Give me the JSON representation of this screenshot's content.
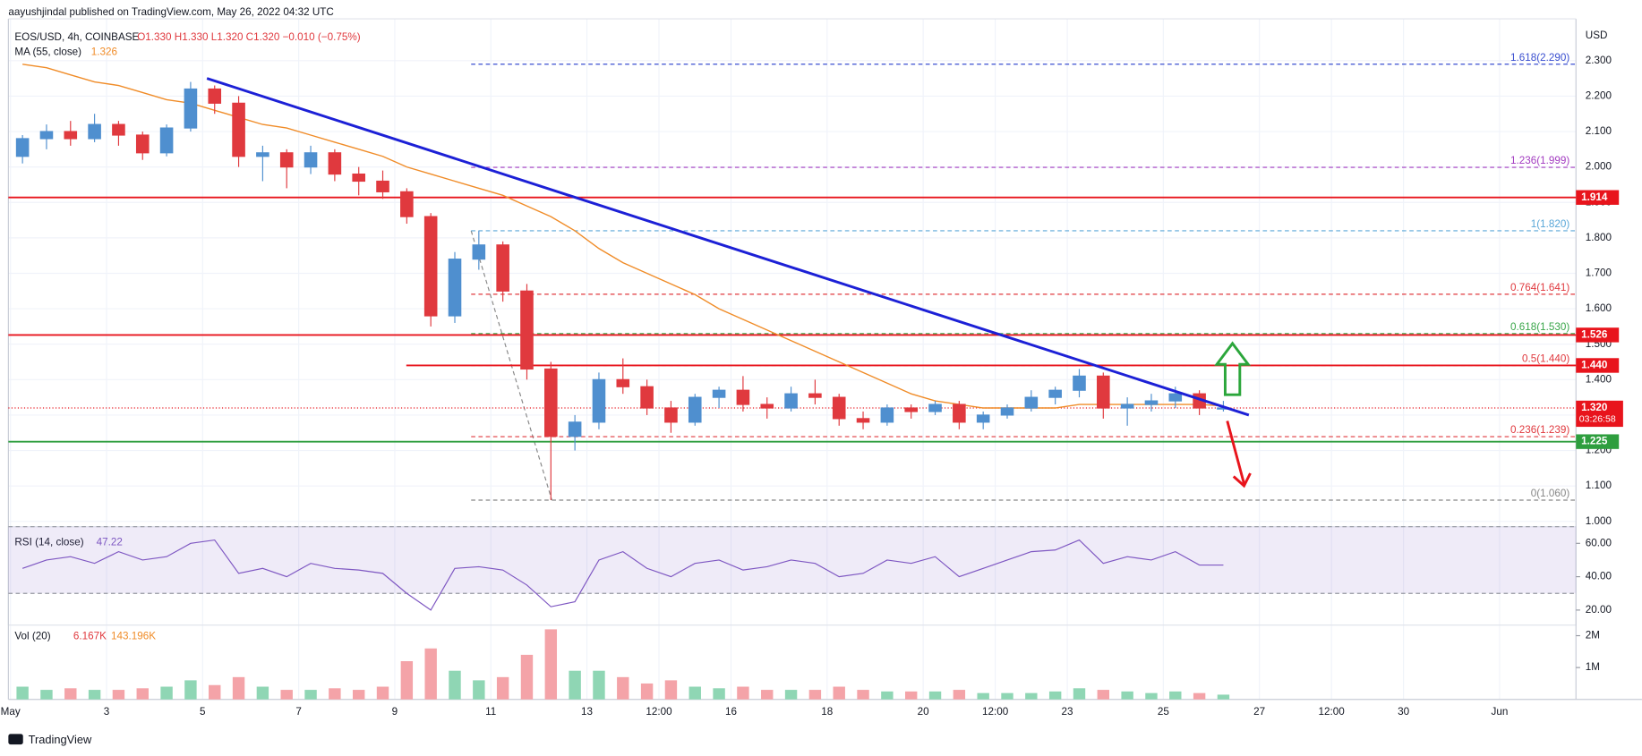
{
  "chart_data": {
    "type": "candlestick",
    "header": "aayushjindal published on TradingView.com, May 26, 2022 04:32 UTC",
    "symbol": "EOS/USD, 4h, COINBASE",
    "ohlc_text": "O1.330 H1.330 L1.320 C1.320 −0.010 (−0.75%)",
    "axis_unit": "USD",
    "footer": "TradingView",
    "up_color": "#4f8fcf",
    "down_color": "#e0393e",
    "x": [
      1.25,
      1.75,
      2.25,
      2.75,
      3.25,
      3.75,
      4.25,
      4.75,
      5.25,
      5.75,
      6.25,
      6.75,
      7.25,
      7.75,
      8.25,
      8.75,
      9.25,
      9.75,
      10.25,
      10.75,
      11.25,
      11.75,
      12.25,
      12.75,
      13.25,
      13.75,
      14.25,
      14.75,
      15.25,
      15.75,
      16.25,
      16.75,
      17.25,
      17.75,
      18.25,
      18.75,
      19.25,
      19.75,
      20.25,
      20.75,
      21.25,
      21.75,
      22.25,
      22.75,
      23.25,
      23.75,
      24.25,
      24.75,
      25.25,
      25.75,
      26.25
    ],
    "open": [
      2.03,
      2.08,
      2.1,
      2.08,
      2.12,
      2.09,
      2.04,
      2.11,
      2.22,
      2.18,
      2.03,
      2.04,
      2.0,
      2.04,
      1.98,
      1.96,
      1.93,
      1.86,
      1.58,
      1.74,
      1.78,
      1.65,
      1.43,
      1.24,
      1.28,
      1.4,
      1.38,
      1.32,
      1.28,
      1.35,
      1.37,
      1.33,
      1.32,
      1.36,
      1.35,
      1.29,
      1.28,
      1.32,
      1.31,
      1.33,
      1.28,
      1.3,
      1.32,
      1.35,
      1.37,
      1.41,
      1.32,
      1.33,
      1.34,
      1.36,
      1.32
    ],
    "high": [
      2.09,
      2.12,
      2.13,
      2.15,
      2.13,
      2.1,
      2.12,
      2.24,
      2.23,
      2.2,
      2.06,
      2.05,
      2.06,
      2.05,
      2.0,
      1.99,
      1.94,
      1.87,
      1.76,
      1.82,
      1.79,
      1.67,
      1.45,
      1.3,
      1.42,
      1.46,
      1.4,
      1.34,
      1.36,
      1.38,
      1.41,
      1.35,
      1.38,
      1.4,
      1.36,
      1.31,
      1.33,
      1.33,
      1.34,
      1.34,
      1.31,
      1.33,
      1.37,
      1.38,
      1.43,
      1.42,
      1.35,
      1.36,
      1.38,
      1.37,
      1.34
    ],
    "low": [
      2.01,
      2.05,
      2.06,
      2.07,
      2.06,
      2.02,
      2.03,
      2.1,
      2.15,
      2.0,
      1.96,
      1.94,
      1.98,
      1.96,
      1.92,
      1.91,
      1.84,
      1.55,
      1.56,
      1.71,
      1.62,
      1.4,
      1.06,
      1.2,
      1.26,
      1.36,
      1.3,
      1.25,
      1.27,
      1.32,
      1.31,
      1.29,
      1.31,
      1.33,
      1.27,
      1.26,
      1.27,
      1.29,
      1.3,
      1.26,
      1.26,
      1.29,
      1.31,
      1.33,
      1.35,
      1.29,
      1.27,
      1.31,
      1.32,
      1.3,
      1.31
    ],
    "close": [
      2.08,
      2.1,
      2.08,
      2.12,
      2.09,
      2.04,
      2.11,
      2.22,
      2.18,
      2.03,
      2.04,
      2.0,
      2.04,
      1.98,
      1.96,
      1.93,
      1.86,
      1.58,
      1.74,
      1.78,
      1.65,
      1.43,
      1.24,
      1.28,
      1.4,
      1.38,
      1.32,
      1.28,
      1.35,
      1.37,
      1.33,
      1.32,
      1.36,
      1.35,
      1.29,
      1.28,
      1.32,
      1.31,
      1.33,
      1.28,
      1.3,
      1.32,
      1.35,
      1.37,
      1.41,
      1.32,
      1.33,
      1.34,
      1.36,
      1.32,
      1.32
    ],
    "xlim": [
      0.956,
      33.59
    ],
    "xticks": [
      {
        "value": 1,
        "label": "May"
      },
      3,
      5,
      7,
      9,
      11,
      13,
      {
        "value": 14.5,
        "label": "12:00"
      },
      16,
      18,
      20,
      {
        "value": 21.5,
        "label": "12:00"
      },
      23,
      25,
      27,
      {
        "value": 28.5,
        "label": "12:00"
      },
      30,
      {
        "value": 32,
        "label": "Jun"
      }
    ],
    "ylim": [
      0.994,
      2.418
    ],
    "yticks": [
      {
        "value": 1.0,
        "label": "1.000"
      },
      {
        "value": 1.1,
        "label": "1.100"
      },
      {
        "value": 1.2,
        "label": "1.200"
      },
      {
        "value": 1.3,
        "label": "1.300"
      },
      {
        "value": 1.4,
        "label": "1.400"
      },
      {
        "value": 1.5,
        "label": "1.500"
      },
      {
        "value": 1.6,
        "label": "1.600"
      },
      {
        "value": 1.7,
        "label": "1.700"
      },
      {
        "value": 1.8,
        "label": "1.800"
      },
      {
        "value": 1.9,
        "label": "1.900"
      },
      {
        "value": 2.0,
        "label": "2.000"
      },
      {
        "value": 2.1,
        "label": "2.100"
      },
      {
        "value": 2.2,
        "label": "2.200"
      },
      {
        "value": 2.3,
        "label": "2.300"
      }
    ],
    "grid": true,
    "ma": {
      "name": "MA (55, close)",
      "last": 1.326,
      "color": "#f08c28",
      "values": [
        2.29,
        2.28,
        2.26,
        2.24,
        2.23,
        2.21,
        2.19,
        2.18,
        2.16,
        2.14,
        2.12,
        2.11,
        2.09,
        2.07,
        2.05,
        2.03,
        2.0,
        1.98,
        1.96,
        1.94,
        1.92,
        1.89,
        1.86,
        1.82,
        1.77,
        1.73,
        1.7,
        1.67,
        1.64,
        1.6,
        1.57,
        1.54,
        1.51,
        1.48,
        1.45,
        1.42,
        1.39,
        1.36,
        1.34,
        1.33,
        1.32,
        1.32,
        1.32,
        1.32,
        1.33,
        1.33,
        1.33,
        1.33,
        1.33,
        1.33,
        1.326
      ]
    },
    "levels": [
      {
        "value": 1.914,
        "label": "1.914",
        "color": "#e8141c"
      },
      {
        "value": 1.526,
        "label": "1.526",
        "color": "#e8141c"
      },
      {
        "value": 1.44,
        "label": "1.440",
        "color": "#e8141c",
        "x_start": 9.24
      },
      {
        "value": 1.225,
        "label": "1.225",
        "color": "#2e9e3e"
      }
    ],
    "current": {
      "value": 1.32,
      "label": "1.320",
      "countdown": "03:26:58",
      "color": "#e8141c"
    },
    "fib_anchor": {
      "x": [
        10.59,
        12.27
      ],
      "y": [
        1.82,
        1.06
      ]
    },
    "fibs": [
      {
        "value": 2.29,
        "label": "1.618(2.290)",
        "color": "#3a4fd0"
      },
      {
        "value": 1.999,
        "label": "1.236(1.999)",
        "color": "#a23bc0"
      },
      {
        "value": 1.82,
        "label": "1(1.820)",
        "color": "#5aa7d8"
      },
      {
        "value": 1.641,
        "label": "0.764(1.641)",
        "color": "#e0393e"
      },
      {
        "value": 1.53,
        "label": "0.618(1.530)",
        "color": "#3aa64a"
      },
      {
        "value": 1.44,
        "label": "0.5(1.440)",
        "color": "#e0393e"
      },
      {
        "value": 1.239,
        "label": "0.236(1.239)",
        "color": "#e0393e"
      },
      {
        "value": 1.06,
        "label": "0(1.060)",
        "color": "#888888"
      }
    ],
    "trendline": {
      "x": [
        5.09,
        26.78
      ],
      "y": [
        2.25,
        1.3
      ],
      "color": "#1c20d6"
    },
    "rsi": {
      "name": "RSI (14, close)",
      "last": 47.22,
      "color": "#7e57c2",
      "ylim": [
        11,
        70
      ],
      "band": [
        30,
        70
      ],
      "yticks": [
        {
          "value": 20,
          "label": "20.00"
        },
        {
          "value": 40,
          "label": "40.00"
        },
        {
          "value": 60,
          "label": "60.00"
        }
      ],
      "values": [
        45,
        50,
        52,
        48,
        55,
        50,
        52,
        60,
        62,
        42,
        45,
        40,
        48,
        45,
        44,
        42,
        30,
        20,
        45,
        46,
        44,
        35,
        22,
        25,
        50,
        55,
        45,
        40,
        48,
        50,
        44,
        46,
        50,
        48,
        40,
        42,
        50,
        48,
        52,
        40,
        45,
        50,
        55,
        56,
        62,
        48,
        52,
        50,
        55,
        47,
        47
      ]
    },
    "volume": {
      "name": "Vol (20)",
      "readings": [
        "6.167K",
        "143.196K"
      ],
      "up_color": "#8fd6b4",
      "down_color": "#f4a3a8",
      "ylim": [
        0,
        2.3
      ],
      "yticks": [
        {
          "value": 1,
          "label": "1M"
        },
        {
          "value": 2,
          "label": "2M"
        }
      ],
      "values": [
        0.4,
        0.3,
        0.35,
        0.3,
        0.3,
        0.35,
        0.4,
        0.6,
        0.45,
        0.7,
        0.4,
        0.3,
        0.3,
        0.35,
        0.3,
        0.4,
        1.2,
        1.6,
        0.9,
        0.6,
        0.7,
        1.4,
        2.2,
        0.9,
        0.9,
        0.7,
        0.5,
        0.6,
        0.4,
        0.35,
        0.4,
        0.3,
        0.3,
        0.3,
        0.4,
        0.3,
        0.25,
        0.25,
        0.25,
        0.3,
        0.2,
        0.2,
        0.2,
        0.25,
        0.35,
        0.3,
        0.25,
        0.2,
        0.25,
        0.2,
        0.15
      ]
    }
  }
}
